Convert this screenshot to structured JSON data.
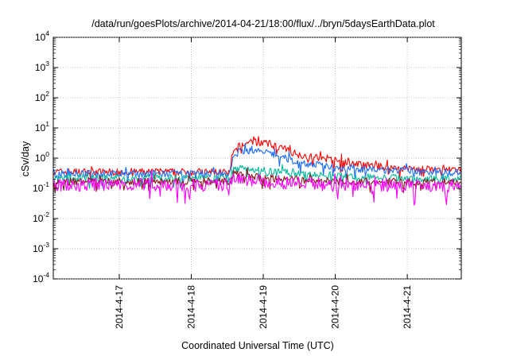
{
  "chart_data": {
    "type": "line",
    "title": "/data/run/goesPlots/archive/2014-04-21/18:00/flux/../bryn/5daysEarthData.plot",
    "xlabel": "Coordinated Universal Time (UTC)",
    "ylabel": "cSv/day",
    "y_scale": "log",
    "ylim": [
      0.0001,
      10000
    ],
    "xlim": [
      "2014-04-16T02:00",
      "2014-04-21T18:00"
    ],
    "grid": true,
    "legend": "none",
    "y_ticks": [
      {
        "base": "10",
        "exp": "4"
      },
      {
        "base": "10",
        "exp": "3"
      },
      {
        "base": "10",
        "exp": "2"
      },
      {
        "base": "10",
        "exp": "1"
      },
      {
        "base": "10",
        "exp": "0"
      },
      {
        "base": "10",
        "exp": "-1"
      },
      {
        "base": "10",
        "exp": "-2"
      },
      {
        "base": "10",
        "exp": "-3"
      },
      {
        "base": "10",
        "exp": "-4"
      }
    ],
    "x_ticks": [
      "2014-4-17",
      "2014-4-18",
      "2014-4-19",
      "2014-4-20",
      "2014-4-21"
    ],
    "series": [
      {
        "color": "#ff0000",
        "x": [
          "2014-04-16T02:00",
          "2014-04-18T13:00",
          "2014-04-18T14:00",
          "2014-04-18T16:00",
          "2014-04-18T20:00",
          "2014-04-19T00:00",
          "2014-04-19T06:00",
          "2014-04-19T12:00",
          "2014-04-20T00:00",
          "2014-04-20T12:00",
          "2014-04-21T00:00",
          "2014-04-21T18:00"
        ],
        "y": [
          0.35,
          0.35,
          1.5,
          2.5,
          3.5,
          3.2,
          2.2,
          1.3,
          0.8,
          0.55,
          0.45,
          0.38
        ]
      },
      {
        "color": "#1a6dff",
        "x": [
          "2014-04-16T02:00",
          "2014-04-18T13:00",
          "2014-04-18T14:00",
          "2014-04-18T16:00",
          "2014-04-18T20:00",
          "2014-04-19T00:00",
          "2014-04-19T06:00",
          "2014-04-19T12:00",
          "2014-04-20T00:00",
          "2014-04-20T12:00",
          "2014-04-21T00:00",
          "2014-04-21T18:00"
        ],
        "y": [
          0.3,
          0.3,
          1.0,
          1.7,
          1.8,
          1.6,
          1.1,
          0.7,
          0.5,
          0.42,
          0.38,
          0.33
        ]
      },
      {
        "color": "#00bb99",
        "x": [
          "2014-04-16T02:00",
          "2014-04-18T13:00",
          "2014-04-18T14:00",
          "2014-04-18T18:00",
          "2014-04-19T00:00",
          "2014-04-19T12:00",
          "2014-04-20T00:00",
          "2014-04-21T00:00",
          "2014-04-21T18:00"
        ],
        "y": [
          0.22,
          0.22,
          0.5,
          0.45,
          0.38,
          0.3,
          0.25,
          0.22,
          0.2
        ]
      },
      {
        "color": "#8b1a1a",
        "x": [
          "2014-04-16T02:00",
          "2014-04-18T13:00",
          "2014-04-18T14:00",
          "2014-04-18T18:00",
          "2014-04-19T00:00",
          "2014-04-19T12:00",
          "2014-04-20T00:00",
          "2014-04-21T18:00"
        ],
        "y": [
          0.17,
          0.17,
          0.3,
          0.26,
          0.22,
          0.19,
          0.17,
          0.16
        ]
      },
      {
        "color": "#ff00ff",
        "x": [
          "2014-04-16T02:00",
          "2014-04-18T13:00",
          "2014-04-18T14:00",
          "2014-04-18T18:00",
          "2014-04-19T00:00",
          "2014-04-19T12:00",
          "2014-04-20T00:00",
          "2014-04-21T18:00"
        ],
        "y": [
          0.13,
          0.13,
          0.24,
          0.2,
          0.17,
          0.15,
          0.13,
          0.12
        ]
      }
    ]
  }
}
